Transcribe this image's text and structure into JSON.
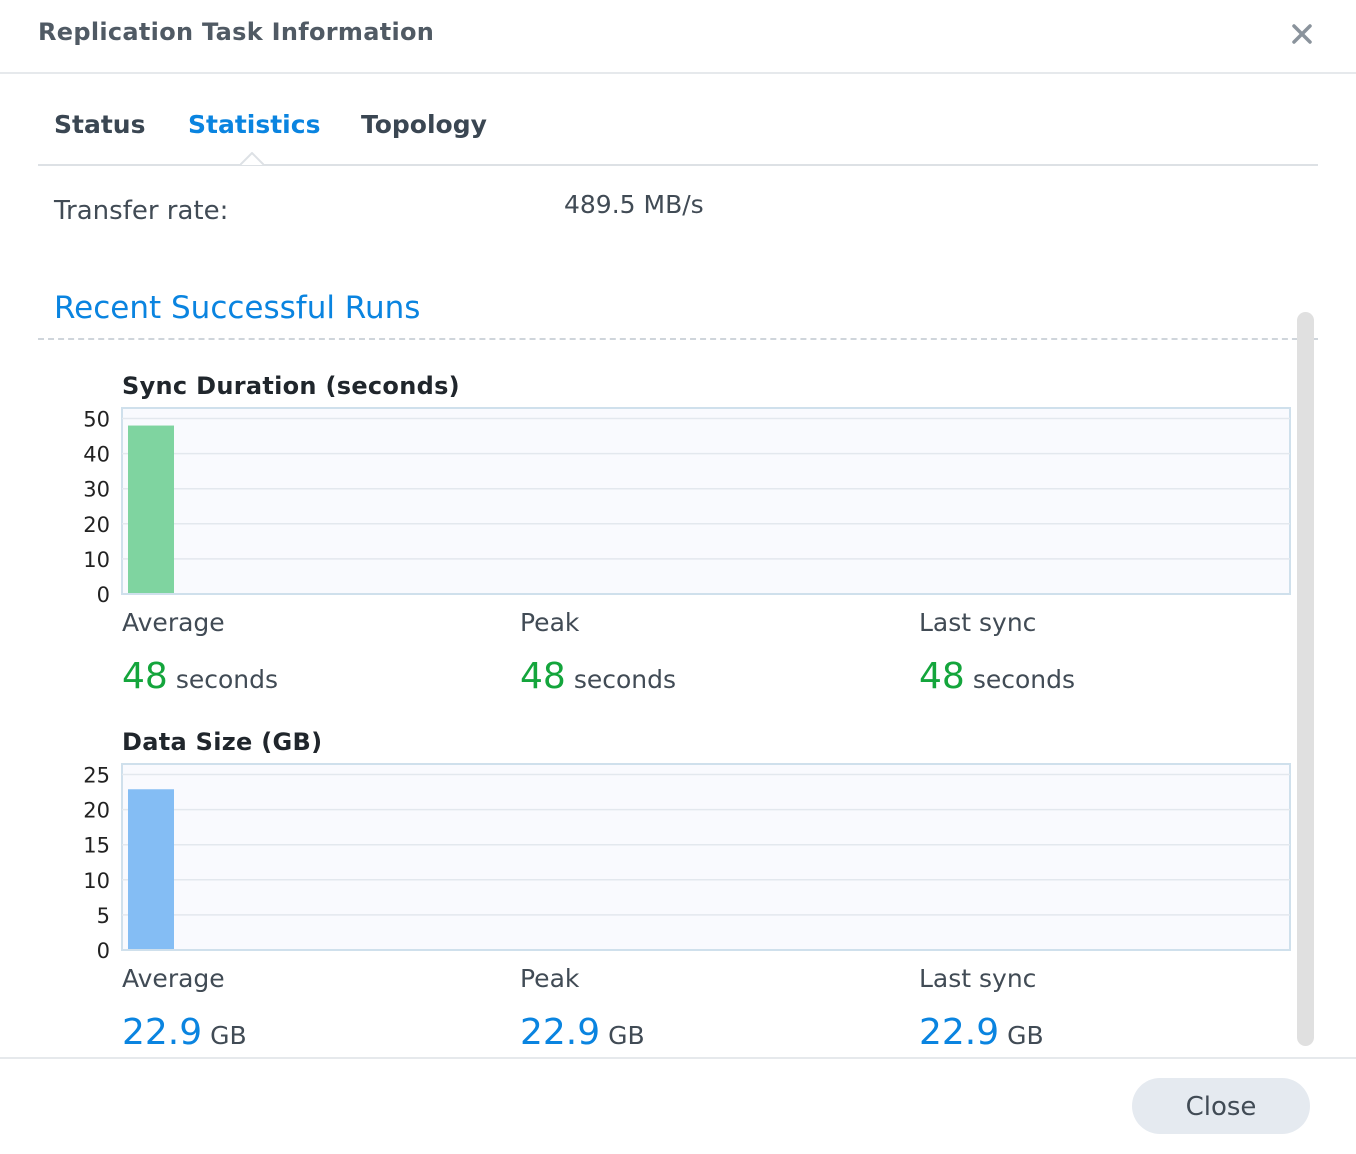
{
  "window": {
    "title": "Replication Task Information"
  },
  "tabs": [
    {
      "label": "Status"
    },
    {
      "label": "Statistics"
    },
    {
      "label": "Topology"
    }
  ],
  "active_tab": "Statistics",
  "transfer": {
    "label": "Transfer rate:",
    "value": "489.5 MB/s"
  },
  "section": {
    "title": "Recent Successful Runs"
  },
  "duration": {
    "title": "Sync Duration (seconds)",
    "stats": [
      {
        "label": "Average",
        "value": "48",
        "unit": "seconds"
      },
      {
        "label": "Peak",
        "value": "48",
        "unit": "seconds"
      },
      {
        "label": "Last sync",
        "value": "48",
        "unit": "seconds"
      }
    ]
  },
  "size": {
    "title": "Data Size (GB)",
    "stats": [
      {
        "label": "Average",
        "value": "22.9",
        "unit": "GB"
      },
      {
        "label": "Peak",
        "value": "22.9",
        "unit": "GB"
      },
      {
        "label": "Last sync",
        "value": "22.9",
        "unit": "GB"
      }
    ]
  },
  "chart_data": [
    {
      "type": "bar",
      "title": "Sync Duration (seconds)",
      "values": [
        48
      ],
      "yticks": [
        0,
        10,
        20,
        30,
        40,
        50
      ],
      "ylim": [
        0,
        53
      ],
      "grid": true,
      "color": "#7fd4a0"
    },
    {
      "type": "bar",
      "title": "Data Size (GB)",
      "values": [
        22.9
      ],
      "yticks": [
        0,
        5,
        10,
        15,
        20,
        25
      ],
      "ylim": [
        0,
        26.5
      ],
      "grid": true,
      "color": "#84bdf4"
    }
  ],
  "footer": {
    "close_label": "Close"
  },
  "colors": {
    "accent": "#0a84e0",
    "green": "#14a53c"
  }
}
